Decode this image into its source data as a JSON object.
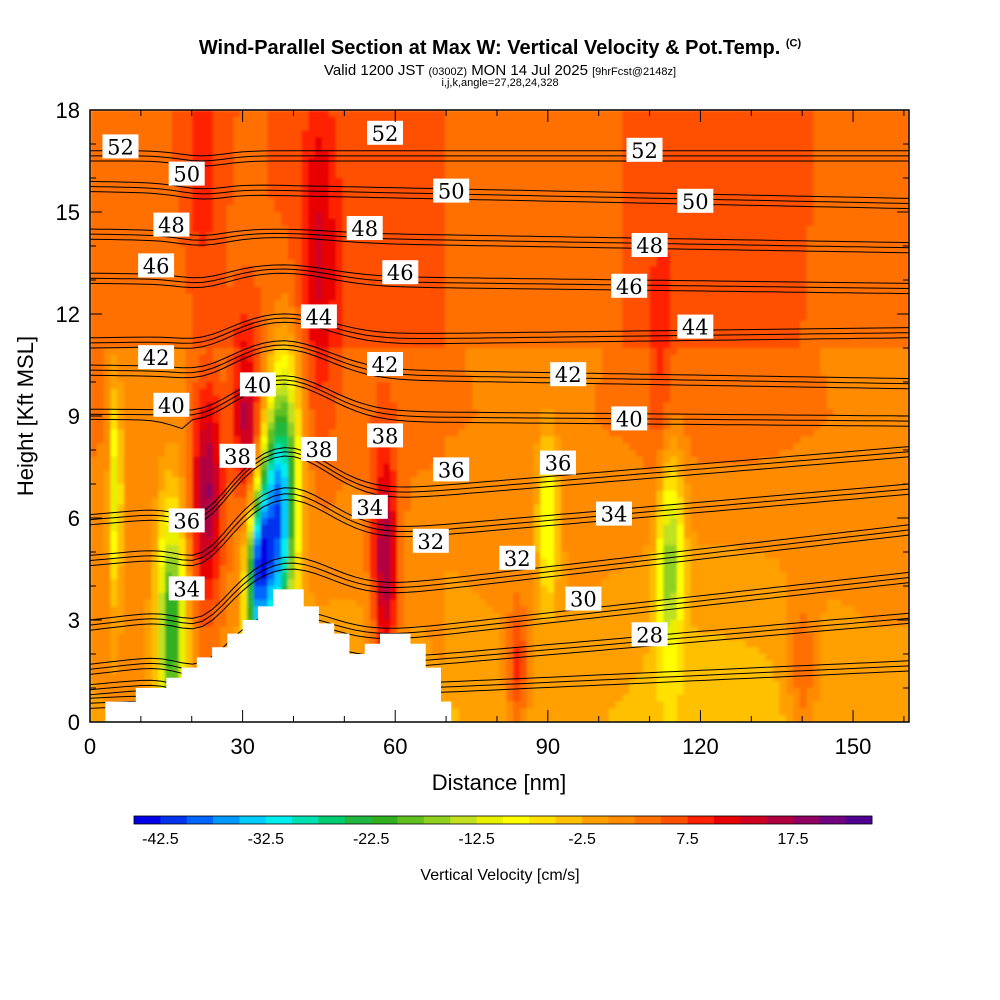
{
  "chart_data": {
    "type": "contour",
    "title": "Wind-Parallel Section at Max W: Vertical Velocity & Pot.Temp.",
    "title_mark": "(C)",
    "subtitle_main": "Valid 1200 JST",
    "subtitle_utc": "(0300Z)",
    "subtitle_date": "MON 14 Jul 2025",
    "subtitle_fcst": "[9hrFcst@2148z]",
    "subtitle2": "i,j,k,angle=27,28,24,328",
    "xlabel": "Distance [nm]",
    "ylabel": "Height [Kft MSL]",
    "xlim": [
      0,
      161
    ],
    "ylim": [
      0,
      18
    ],
    "x_ticks": [
      0,
      30,
      60,
      90,
      120,
      150
    ],
    "y_ticks": [
      0,
      3,
      6,
      9,
      12,
      15,
      18
    ],
    "colorbar": {
      "label": "Vertical Velocity [cm/s]",
      "min": -45,
      "step": 2.5,
      "tick_labels": [
        "-42.5",
        "-32.5",
        "-22.5",
        "-12.5",
        "-2.5",
        "7.5",
        "17.5"
      ],
      "tick_values": [
        -42.5,
        -32.5,
        -22.5,
        -12.5,
        -2.5,
        7.5,
        17.5
      ],
      "colors": [
        "#0000e6",
        "#0033ee",
        "#0066ff",
        "#0099ff",
        "#00ccff",
        "#00eeee",
        "#00e0b0",
        "#00cc70",
        "#20b840",
        "#30b020",
        "#60c020",
        "#90d020",
        "#c0e020",
        "#e8f000",
        "#ffff00",
        "#ffe000",
        "#ffc000",
        "#ffa000",
        "#ff8c00",
        "#ff7000",
        "#ff5000",
        "#ff2000",
        "#e80000",
        "#d00020",
        "#b00040",
        "#900060",
        "#700080",
        "#500090"
      ]
    },
    "terrain_profile": [
      [
        0,
        0
      ],
      [
        3,
        0
      ],
      [
        3,
        0.6
      ],
      [
        9,
        0.6
      ],
      [
        9,
        1
      ],
      [
        15,
        1
      ],
      [
        15,
        1.3
      ],
      [
        18,
        1.3
      ],
      [
        18,
        1.6
      ],
      [
        21,
        1.6
      ],
      [
        21,
        1.9
      ],
      [
        24,
        1.9
      ],
      [
        24,
        2.2
      ],
      [
        27,
        2.2
      ],
      [
        27,
        2.6
      ],
      [
        30,
        2.6
      ],
      [
        30,
        3
      ],
      [
        33,
        3
      ],
      [
        33,
        3.4
      ],
      [
        36,
        3.4
      ],
      [
        36,
        3.9
      ],
      [
        42,
        3.9
      ],
      [
        42,
        3.4
      ],
      [
        45,
        3.4
      ],
      [
        45,
        2.9
      ],
      [
        48,
        2.9
      ],
      [
        48,
        2.6
      ],
      [
        51,
        2.6
      ],
      [
        51,
        2
      ],
      [
        54,
        2
      ],
      [
        54,
        2.3
      ],
      [
        57,
        2.3
      ],
      [
        57,
        2.6
      ],
      [
        63,
        2.6
      ],
      [
        63,
        2.3
      ],
      [
        66,
        2.3
      ],
      [
        66,
        1.6
      ],
      [
        69,
        1.6
      ],
      [
        69,
        0.6
      ],
      [
        71,
        0.6
      ],
      [
        71,
        0
      ],
      [
        161,
        0
      ]
    ],
    "theta_contours": [
      {
        "label": "28",
        "y0": 0.4,
        "y1": 1.5,
        "label_x": 110,
        "label_y": 2.55
      },
      {
        "label": "30",
        "y0": 0.8,
        "y1": 2.9,
        "label_x": 97,
        "label_y": 3.6
      },
      {
        "label": "32",
        "y0": 1.4,
        "y1": 4.1,
        "label_x": 84,
        "label_y": 4.8
      },
      {
        "label": "34",
        "y0": 2.7,
        "y1": 5.5,
        "label_x": 19,
        "label_y": 3.9
      },
      {
        "label": "36",
        "y0": 4.6,
        "y1": 6.7,
        "label_x": 19,
        "label_y": 5.9
      },
      {
        "label": "38",
        "y0": 5.8,
        "y1": 7.8,
        "label_x": 29,
        "label_y": 7.8
      },
      {
        "label": "40",
        "y0": 8.9,
        "y1": 8.7,
        "label_x": 16,
        "label_y": 9.3
      },
      {
        "label": "42",
        "y0": 10.2,
        "y1": 9.8,
        "label_x": 13,
        "label_y": 10.7
      },
      {
        "label": "44",
        "y0": 11.0,
        "y1": 11.3,
        "label_x": 119,
        "label_y": 11.6
      },
      {
        "label": "46",
        "y0": 12.9,
        "y1": 12.6,
        "label_x": 13,
        "label_y": 13.4
      },
      {
        "label": "48",
        "y0": 14.2,
        "y1": 13.8,
        "label_x": 16,
        "label_y": 14.6
      },
      {
        "label": "50",
        "y0": 15.6,
        "y1": 15.1,
        "label_x": 19,
        "label_y": 16.1
      },
      {
        "label": "52",
        "y0": 16.5,
        "y1": 16.5,
        "label_x": 6,
        "label_y": 16.9
      }
    ],
    "theta_extra_labels": [
      {
        "label": "52",
        "x": 58,
        "y": 17.3
      },
      {
        "label": "52",
        "x": 109,
        "y": 16.8
      },
      {
        "label": "50",
        "x": 71,
        "y": 15.6
      },
      {
        "label": "50",
        "x": 119,
        "y": 15.3
      },
      {
        "label": "48",
        "x": 54,
        "y": 14.5
      },
      {
        "label": "48",
        "x": 110,
        "y": 14.0
      },
      {
        "label": "46",
        "x": 61,
        "y": 13.2
      },
      {
        "label": "46",
        "x": 106,
        "y": 12.8
      },
      {
        "label": "44",
        "x": 45,
        "y": 11.9
      },
      {
        "label": "42",
        "x": 58,
        "y": 10.5
      },
      {
        "label": "42",
        "x": 94,
        "y": 10.2
      },
      {
        "label": "40",
        "x": 33,
        "y": 9.9
      },
      {
        "label": "40",
        "x": 106,
        "y": 8.9
      },
      {
        "label": "38",
        "x": 45,
        "y": 8.0
      },
      {
        "label": "38",
        "x": 58,
        "y": 8.4
      },
      {
        "label": "36",
        "x": 71,
        "y": 7.4
      },
      {
        "label": "36",
        "x": 92,
        "y": 7.6
      },
      {
        "label": "34",
        "x": 55,
        "y": 6.3
      },
      {
        "label": "34",
        "x": 103,
        "y": 6.1
      },
      {
        "label": "32",
        "x": 67,
        "y": 5.3
      }
    ],
    "w_features": [
      {
        "x": 37,
        "y": 6.0,
        "sx": 3.2,
        "sy": 2.2,
        "w": -38,
        "angle": 60
      },
      {
        "x": 33,
        "y": 4.5,
        "sx": 2.0,
        "sy": 1.4,
        "w": -30,
        "angle": 60
      },
      {
        "x": 16,
        "y": 2.8,
        "sx": 3.5,
        "sy": 1.4,
        "w": -22,
        "angle": 0
      },
      {
        "x": 114,
        "y": 4.8,
        "sx": 2.5,
        "sy": 1.5,
        "w": -14,
        "angle": 80
      },
      {
        "x": 5,
        "y": 6.8,
        "sx": 1.2,
        "sy": 1.5,
        "w": -12,
        "angle": 90
      },
      {
        "x": 90,
        "y": 6.0,
        "sx": 2.5,
        "sy": 1.0,
        "w": -9,
        "angle": 0
      },
      {
        "x": 23,
        "y": 6.7,
        "sx": 3.0,
        "sy": 1.6,
        "w": 19,
        "angle": 70
      },
      {
        "x": 31,
        "y": 8.8,
        "sx": 3.0,
        "sy": 1.2,
        "w": 17,
        "angle": 60
      },
      {
        "x": 58,
        "y": 4.6,
        "sx": 2.5,
        "sy": 1.6,
        "w": 20,
        "angle": 90
      },
      {
        "x": 84,
        "y": 1.6,
        "sx": 2.0,
        "sy": 0.9,
        "w": 12,
        "angle": 90
      },
      {
        "x": 140,
        "y": 1.4,
        "sx": 3.0,
        "sy": 1.2,
        "w": 9,
        "angle": 90
      },
      {
        "x": 45,
        "y": 13.8,
        "sx": 3.5,
        "sy": 2.5,
        "w": 10,
        "angle": 90
      },
      {
        "x": 22,
        "y": 16.0,
        "sx": 4.0,
        "sy": 1.8,
        "w": 8,
        "angle": 90
      },
      {
        "x": 112,
        "y": 10.5,
        "sx": 2.5,
        "sy": 2.0,
        "w": 7,
        "angle": 90
      },
      {
        "x": 137,
        "y": 16.0,
        "sx": 4.0,
        "sy": 1.5,
        "w": 4,
        "angle": 90
      }
    ]
  }
}
